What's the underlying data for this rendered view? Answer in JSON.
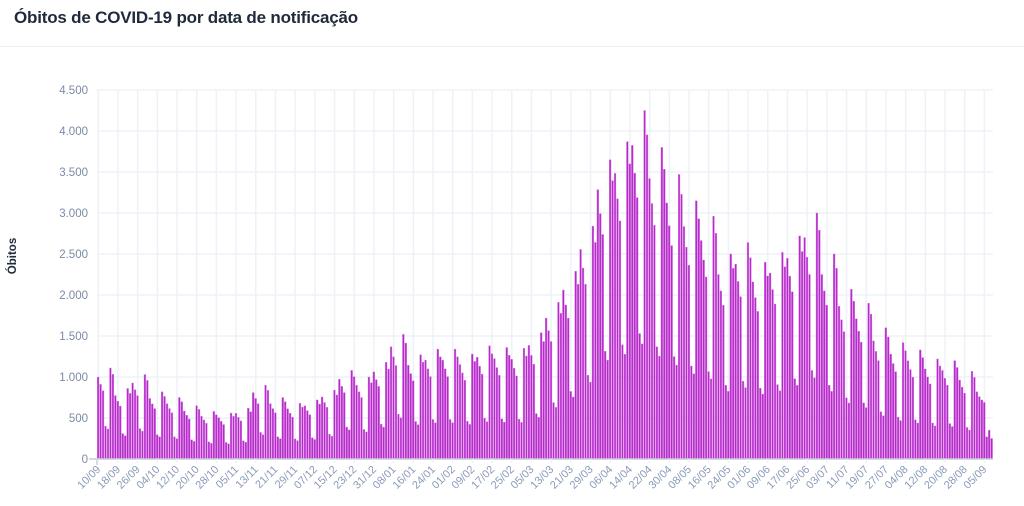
{
  "title": "Óbitos de COVID-19 por data de notificação",
  "colors": {
    "bar": "#b52ac9",
    "bar_edge": "#d77ee3",
    "grid": "#eef2f8",
    "axis": "#c8ccd4"
  },
  "chart_data": {
    "type": "bar",
    "title": "Óbitos de COVID-19 por data de notificação",
    "xlabel": "",
    "ylabel": "Óbitos",
    "ylim": [
      0,
      4500
    ],
    "yticks": [
      0,
      500,
      1000,
      1500,
      2000,
      2500,
      3000,
      3500,
      4000,
      4500
    ],
    "ytick_labels": [
      "0",
      "500",
      "1.000",
      "1.500",
      "2.000",
      "2.500",
      "3.000",
      "3.500",
      "4.000",
      "4.500"
    ],
    "grid": true,
    "start_date": "10/09",
    "xtick_every_days": 8,
    "xtick_labels": [
      "10/09",
      "18/09",
      "26/09",
      "04/10",
      "12/10",
      "20/10",
      "28/10",
      "05/11",
      "13/11",
      "21/11",
      "29/11",
      "07/12",
      "15/12",
      "23/12",
      "31/12",
      "08/01",
      "16/01",
      "24/01",
      "01/02",
      "09/02",
      "17/02",
      "25/02",
      "05/03",
      "13/03",
      "21/03",
      "29/03",
      "06/04",
      "14/04",
      "22/04",
      "30/04",
      "08/05",
      "16/05",
      "24/05",
      "01/06",
      "09/06",
      "17/06",
      "25/06",
      "03/07",
      "11/07",
      "19/07",
      "27/07",
      "04/08",
      "12/08",
      "20/08",
      "28/08",
      "05/09"
    ],
    "values": [
      999,
      910,
      833,
      400,
      366,
      1110,
      1032,
      774,
      705,
      645,
      310,
      284,
      860,
      800,
      927,
      845,
      773,
      371,
      340,
      1030,
      958,
      738,
      672,
      615,
      295,
      271,
      820,
      763,
      675,
      615,
      563,
      270,
      248,
      750,
      698,
      585,
      533,
      488,
      234,
      215,
      650,
      605,
      522,
      476,
      435,
      209,
      191,
      580,
      539,
      504,
      459,
      420,
      202,
      185,
      560,
      521,
      558,
      508,
      465,
      223,
      205,
      620,
      577,
      810,
      738,
      675,
      324,
      297,
      900,
      837,
      675,
      615,
      563,
      270,
      248,
      750,
      698,
      612,
      558,
      510,
      245,
      224,
      680,
      632,
      648,
      590,
      540,
      259,
      238,
      720,
      670,
      756,
      689,
      630,
      302,
      277,
      840,
      781,
      972,
      886,
      810,
      389,
      356,
      1080,
      1004,
      900,
      820,
      750,
      360,
      330,
      1000,
      930,
      1062,
      968,
      885,
      425,
      389,
      1180,
      1097,
      1368,
      1246,
      1140,
      547,
      502,
      1520,
      1414,
      1143,
      1041,
      953,
      457,
      419,
      1270,
      1181,
      1206,
      1099,
      1005,
      482,
      442,
      1340,
      1246,
      1206,
      1099,
      1005,
      482,
      442,
      1340,
      1246,
      1152,
      1050,
      960,
      461,
      422,
      1280,
      1190,
      1242,
      1132,
      1035,
      497,
      455,
      1380,
      1283,
      1224,
      1115,
      1020,
      490,
      449,
      1360,
      1265,
      1215,
      1107,
      1013,
      486,
      446,
      1350,
      1256,
      1386,
      1263,
      1155,
      554,
      508,
      1540,
      1432,
      1719,
      1566,
      1433,
      688,
      630,
      1910,
      1776,
      2061,
      1878,
      1718,
      824,
      756,
      2290,
      2130,
      2556,
      2329,
      2130,
      1022,
      937,
      2840,
      2641,
      3285,
      2993,
      2738,
      1314,
      1205,
      3650,
      3395,
      3483,
      3173,
      2903,
      1393,
      1277,
      3870,
      3599,
      3825,
      3485,
      3188,
      1530,
      1403,
      4250,
      3953,
      3420,
      3116,
      2850,
      1368,
      1254,
      3800,
      3534,
      3123,
      2845,
      2603,
      1249,
      1145,
      3470,
      3227,
      2835,
      2583,
      2363,
      1134,
      1040,
      3150,
      2930,
      2664,
      2427,
      2220,
      1066,
      977,
      2960,
      2753,
      2250,
      2050,
      1875,
      900,
      825,
      2500,
      2325,
      2376,
      2165,
      1980,
      950,
      871,
      2640,
      2455,
      2160,
      1968,
      1800,
      864,
      792,
      2400,
      2232,
      2268,
      2066,
      1890,
      907,
      832,
      2520,
      2344,
      2448,
      2230,
      2040,
      979,
      898,
      2720,
      2530,
      2700,
      2460,
      2250,
      1080,
      990,
      3000,
      2790,
      2250,
      2050,
      1875,
      900,
      825,
      2500,
      2325,
      1863,
      1697,
      1553,
      745,
      683,
      2070,
      1925,
      1710,
      1558,
      1425,
      684,
      627,
      1900,
      1767,
      1440,
      1312,
      1200,
      576,
      528,
      1600,
      1488,
      1278,
      1164,
      1065,
      511,
      469,
      1420,
      1321,
      1197,
      1091,
      998,
      479,
      439,
      1330,
      1237,
      1098,
      1000,
      915,
      439,
      403,
      1220,
      1135,
      1080,
      984,
      900,
      432,
      396,
      1200,
      1116,
      963,
      877,
      803,
      385,
      353,
      1070,
      995,
      820,
      760,
      720,
      690,
      270,
      350,
      250
    ]
  }
}
